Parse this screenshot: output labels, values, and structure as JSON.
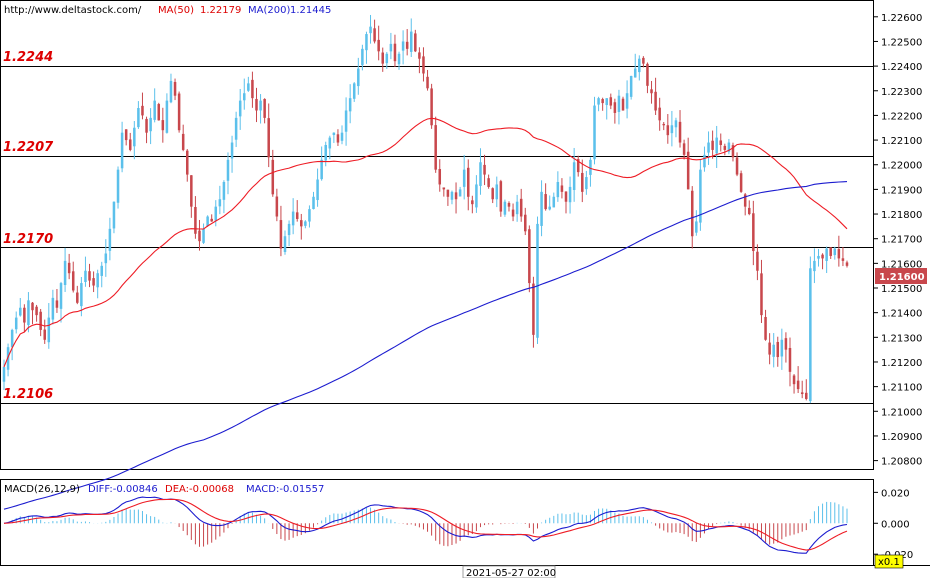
{
  "header": {
    "url": "http://www.deltastock.com/",
    "ma50_label": "MA(50)",
    "ma50_value": "1.22179",
    "ma200_label": "MA(200)",
    "ma200_value": "1.21445"
  },
  "macd_header": {
    "name": "MACD(26,12,9)",
    "diff": "DIFF:-0.00846",
    "dea": "DEA:-0.00068",
    "macd": "MACD:-0.01557"
  },
  "levels": [
    "1.2244",
    "1.2207",
    "1.2170",
    "1.2106"
  ],
  "current_price_label": "1.21600",
  "x_label": "2021-05-27 02:00",
  "zoom_label": "x0.1",
  "colors": {
    "bull": "#5bc0eb",
    "bear": "#c8474c",
    "ma50": "#ee1c25",
    "ma200": "#1c1ccf",
    "level_text": "#dd0000",
    "diff_line": "#1c1ccf",
    "dea_line": "#ee1c25"
  },
  "chart_data": [
    {
      "type": "candlestick",
      "title": "",
      "y_ticks": [
        "1.22600",
        "1.22500",
        "1.22400",
        "1.22300",
        "1.22200",
        "1.22100",
        "1.22000",
        "1.21900",
        "1.21800",
        "1.21700",
        "1.21600",
        "1.21500",
        "1.21400",
        "1.21300",
        "1.21200",
        "1.21100",
        "1.21000",
        "1.20900",
        "1.20800"
      ],
      "ylim": [
        1.2077,
        1.2266
      ],
      "horizontal_levels": [
        1.2244,
        1.2207,
        1.217,
        1.2106
      ],
      "current_price": 1.216,
      "series": [
        {
          "name": "MA(50)",
          "type": "line",
          "last_value": 1.22179
        },
        {
          "name": "MA(200)",
          "type": "line",
          "last_value": 1.21445
        }
      ],
      "closes": [
        1.2118,
        1.2126,
        1.2133,
        1.2138,
        1.2142,
        1.2136,
        1.2145,
        1.2141,
        1.2139,
        1.2133,
        1.2129,
        1.2138,
        1.2146,
        1.2142,
        1.2152,
        1.2161,
        1.2156,
        1.2149,
        1.2144,
        1.2152,
        1.2157,
        1.2153,
        1.2151,
        1.2156,
        1.2159,
        1.2164,
        1.2174,
        1.2185,
        1.2198,
        1.2213,
        1.221,
        1.2206,
        1.2215,
        1.2223,
        1.222,
        1.2213,
        1.2219,
        1.2226,
        1.2218,
        1.2214,
        1.2226,
        1.2234,
        1.2228,
        1.2214,
        1.2206,
        1.2196,
        1.2183,
        1.2172,
        1.2169,
        1.2174,
        1.2179,
        1.2177,
        1.2183,
        1.2186,
        1.2193,
        1.2202,
        1.2209,
        1.2219,
        1.2226,
        1.2229,
        1.2233,
        1.2227,
        1.2222,
        1.2226,
        1.2219,
        1.2203,
        1.2188,
        1.2179,
        1.2166,
        1.2171,
        1.2176,
        1.2181,
        1.2178,
        1.2175,
        1.2177,
        1.2182,
        1.2187,
        1.2194,
        1.2202,
        1.2208,
        1.2211,
        1.2213,
        1.2209,
        1.2213,
        1.2222,
        1.2227,
        1.2233,
        1.2239,
        1.2247,
        1.2253,
        1.2256,
        1.225,
        1.2246,
        1.2241,
        1.2245,
        1.2249,
        1.2242,
        1.2245,
        1.225,
        1.2247,
        1.2254,
        1.2246,
        1.2243,
        1.2237,
        1.2231,
        1.2216,
        1.2198,
        1.2192,
        1.219,
        1.2187,
        1.2189,
        1.2186,
        1.219,
        1.2198,
        1.2187,
        1.2184,
        1.2192,
        1.2201,
        1.2196,
        1.2191,
        1.2186,
        1.2192,
        1.2181,
        1.2185,
        1.2183,
        1.2179,
        1.2185,
        1.2179,
        1.2173,
        1.2152,
        1.2131,
        1.2176,
        1.2189,
        1.2182,
        1.2183,
        1.2187,
        1.2193,
        1.2189,
        1.2185,
        1.2191,
        1.2201,
        1.2197,
        1.2189,
        1.2195,
        1.2202,
        1.2224,
        1.2227,
        1.2225,
        1.2227,
        1.2224,
        1.2221,
        1.2228,
        1.2222,
        1.2229,
        1.2236,
        1.2239,
        1.2243,
        1.2241,
        1.2232,
        1.2229,
        1.2222,
        1.2218,
        1.2216,
        1.2212,
        1.2216,
        1.2218,
        1.2209,
        1.2204,
        1.219,
        1.2171,
        1.2177,
        1.2198,
        1.2204,
        1.2209,
        1.2206,
        1.2211,
        1.2208,
        1.2206,
        1.2209,
        1.2203,
        1.2196,
        1.2189,
        1.2183,
        1.218,
        1.2165,
        1.2157,
        1.2139,
        1.2129,
        1.2123,
        1.2127,
        1.2122,
        1.2129,
        1.2125,
        1.2116,
        1.2111,
        1.2109,
        1.2107,
        1.2105,
        1.2158,
        1.2161,
        1.2163,
        1.2162,
        1.2166,
        1.2163,
        1.2166,
        1.2162,
        1.2161,
        1.2159
      ]
    },
    {
      "type": "macd",
      "title": "MACD(26,12,9)",
      "y_ticks": [
        "0.020",
        "0.000",
        "-0.020"
      ],
      "ylim": [
        -0.027,
        0.028
      ],
      "series": [
        {
          "name": "DIFF",
          "last_value": -0.00846
        },
        {
          "name": "DEA",
          "last_value": -0.00068
        },
        {
          "name": "MACD",
          "last_value": -0.01557
        }
      ]
    }
  ]
}
